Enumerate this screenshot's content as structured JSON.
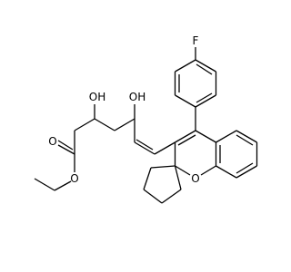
{
  "molecule": {
    "atom_labels": [
      "F",
      "OH",
      "OH",
      "O",
      "O",
      "O"
    ]
  }
}
